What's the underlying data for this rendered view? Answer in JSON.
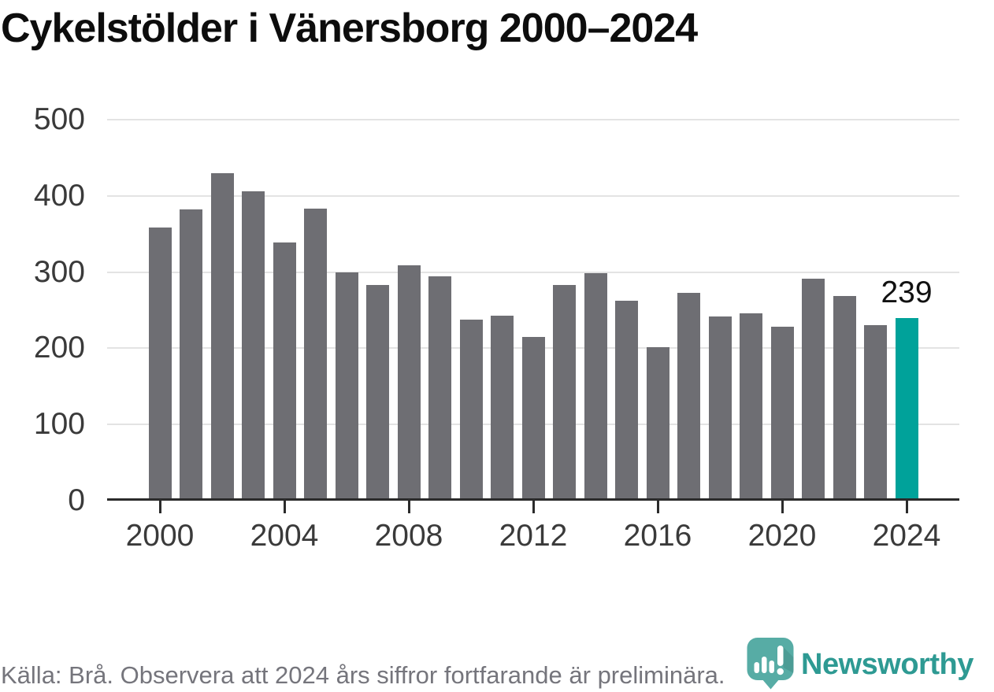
{
  "title": "Cykelstölder i Vänersborg 2000–2024",
  "footer": {
    "source_note": "Källa: Brå. Observera att 2024 års siffror fortfarande är preliminära."
  },
  "branding": {
    "logo_text": "Newsworthy",
    "logo_icon": "newsworthy-pin-barchart-icon"
  },
  "colors": {
    "bar": "#6e6e73",
    "highlight": "#00a29a",
    "grid": "#e3e3e3",
    "axis": "#2b2b2b",
    "axis_labels": "#3a3a3a",
    "title_text": "#0d0d0d",
    "muted_text": "#75757c",
    "brand_teal": "#2e9a93"
  },
  "chart_data": {
    "type": "bar",
    "title": "Cykelstölder i Vänersborg 2000–2024",
    "xlabel": "",
    "ylabel": "",
    "x": [
      2000,
      2001,
      2002,
      2003,
      2004,
      2005,
      2006,
      2007,
      2008,
      2009,
      2010,
      2011,
      2012,
      2013,
      2014,
      2015,
      2016,
      2017,
      2018,
      2019,
      2020,
      2021,
      2022,
      2023,
      2024
    ],
    "values": [
      358,
      382,
      430,
      406,
      339,
      383,
      299,
      283,
      309,
      294,
      237,
      243,
      215,
      283,
      298,
      262,
      201,
      273,
      242,
      246,
      228,
      291,
      268,
      230,
      239
    ],
    "highlight_index": 24,
    "highlight_value_label": "239",
    "y_ticks": [
      0,
      100,
      200,
      300,
      400,
      500
    ],
    "x_ticks": [
      2000,
      2004,
      2008,
      2012,
      2016,
      2020,
      2024
    ],
    "ylim": [
      0,
      500
    ],
    "grid": true,
    "legend": false
  }
}
